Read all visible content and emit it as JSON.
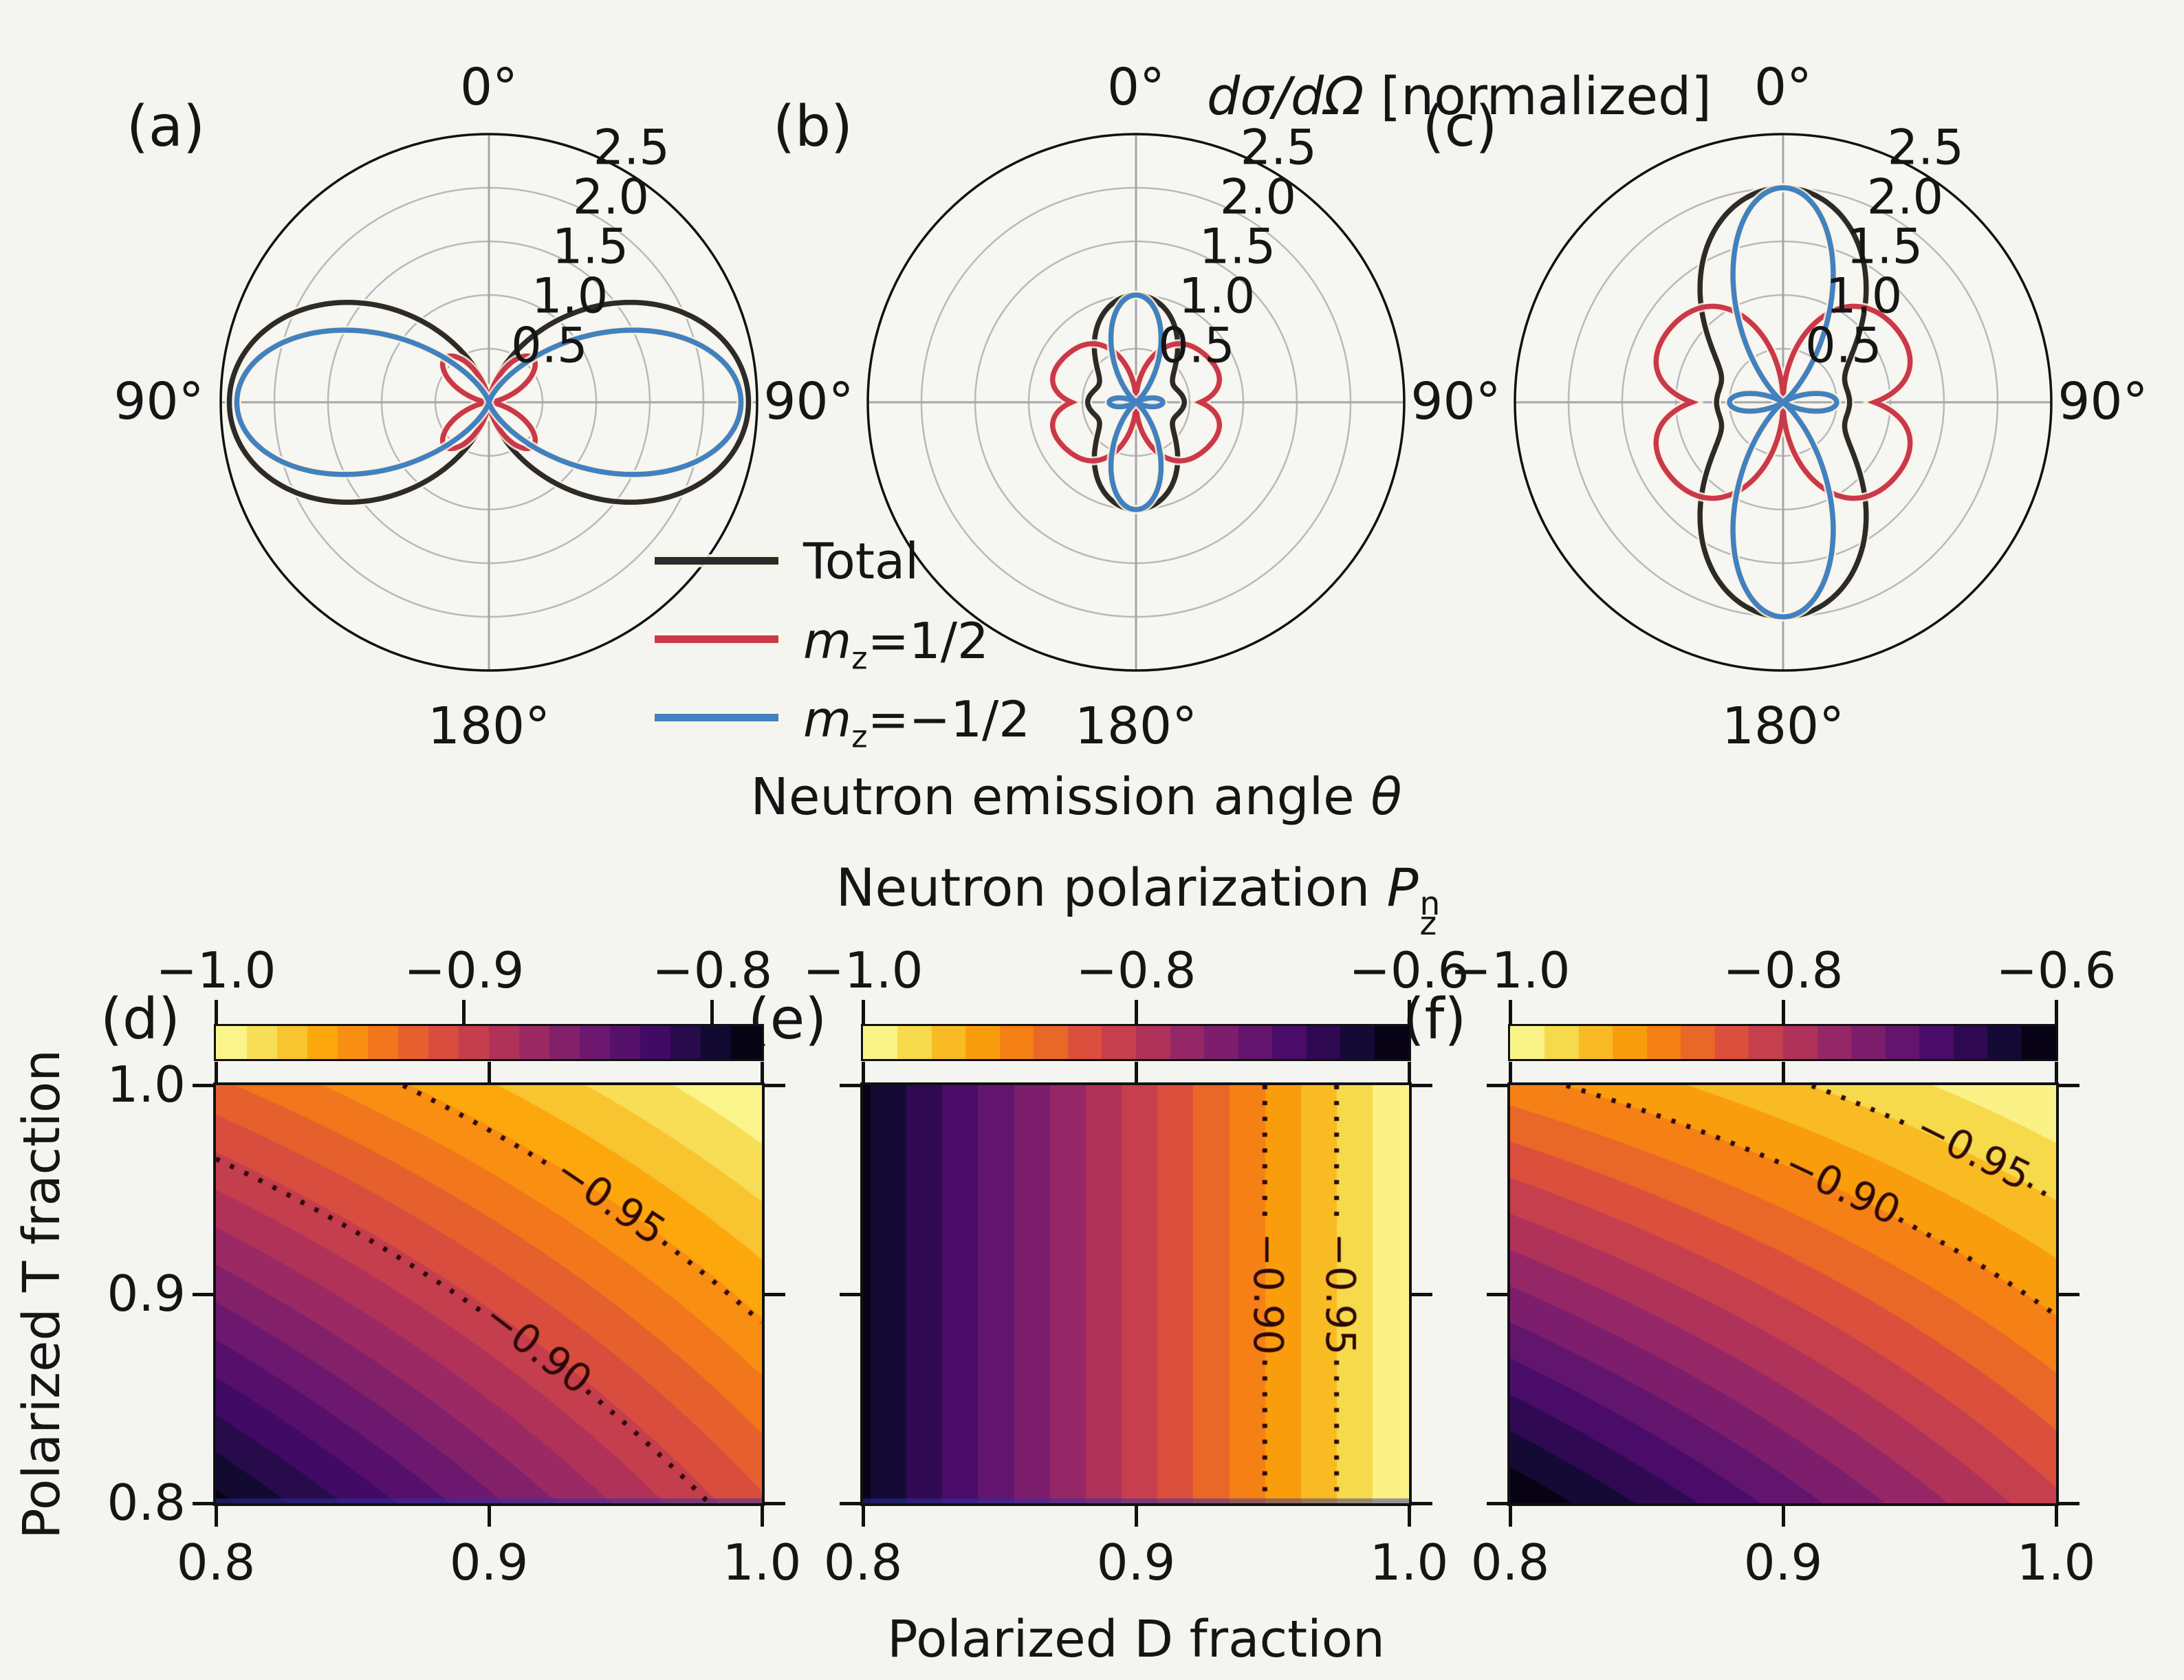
{
  "figure": {
    "background": "#f4f4f1"
  },
  "titles": {
    "polar_title_html": "<i>dσ/dΩ</i> [normalized]",
    "polar_xlabel_html": "Neutron emission angle <i>θ</i>",
    "heat_title_html": "Neutron polarization <i>P</i><span class=\"ss\"><span>n</span><span>z</span></span>",
    "heat_xlabel": "Polarized D fraction",
    "heat_ylabel": "Polarized T fraction"
  },
  "legend": {
    "items": [
      {
        "name": "Total",
        "label_html": "Total",
        "color": "#2b2b2b"
      },
      {
        "name": "mz=1/2",
        "label_html": "<i>m</i><sub>z</sub>=1/2",
        "color": "#c9394b"
      },
      {
        "name": "mz=-1/2",
        "label_html": "<i>m</i><sub>z</sub>=−1/2",
        "color": "#4181c0"
      }
    ]
  },
  "polar_common": {
    "angle_top": "0°",
    "angle_side": "90°",
    "angle_bottom": "180°",
    "r_tick_labels": [
      "0.5",
      "1.0",
      "1.5",
      "2.0",
      "2.5"
    ],
    "r_ticks": [
      0.5,
      1.0,
      1.5,
      2.0,
      2.5
    ],
    "r_max": 2.5,
    "grid_color": "#b9b9b9",
    "spoke_color": "#a6a6a6"
  },
  "chart_data": [
    {
      "id": "a",
      "type": "polar_line",
      "panel_label": "(a)",
      "note": "r(theta) in normalized dsigma/dOmega units; theta=0 at top, symmetric left/right",
      "series": [
        {
          "name": "Total",
          "color": "#2b2b2b",
          "peak_r": 2.42,
          "peak_theta_deg": 90,
          "terms": [
            [
              "sin2",
              2.42
            ]
          ]
        },
        {
          "name": "m_z=1/2",
          "color": "#c9394b",
          "peak_r": 0.58,
          "peak_theta_deg": 45,
          "terms": [
            [
              "sin2dbl",
              0.58
            ]
          ]
        },
        {
          "name": "m_z=-1/2",
          "color": "#4181c0",
          "peak_r": 2.35,
          "peak_theta_deg": 90,
          "terms": [
            [
              "sin4",
              2.35
            ]
          ]
        }
      ]
    },
    {
      "id": "b",
      "type": "polar_line",
      "panel_label": "(b)",
      "series": [
        {
          "name": "Total",
          "color": "#2b2b2b",
          "peak_r": 1.0,
          "peak_theta_deg": 0,
          "terms": [
            [
              "cos2",
              1.0
            ],
            [
              "sin8",
              0.45
            ]
          ]
        },
        {
          "name": "m_z=1/2",
          "color": "#c9394b",
          "peak_r": 0.7,
          "peak_theta_deg": 45,
          "terms": [
            [
              "absin2dbl",
              0.7
            ],
            [
              "sin8",
              0.6
            ]
          ]
        },
        {
          "name": "m_z=-1/2",
          "color": "#4181c0",
          "peak_r": 1.0,
          "peak_theta_deg": 0,
          "terms": [
            [
              "p2sq",
              1.0
            ]
          ]
        }
      ]
    },
    {
      "id": "c",
      "type": "polar_line",
      "panel_label": "(c)",
      "series": [
        {
          "name": "Total",
          "color": "#2b2b2b",
          "peak_r": 2.0,
          "peak_theta_deg": 0,
          "terms": [
            [
              "cos2",
              2.0
            ],
            [
              "sin8",
              0.62
            ]
          ]
        },
        {
          "name": "m_z=1/2",
          "color": "#c9394b",
          "peak_r": 1.15,
          "peak_theta_deg": 45,
          "terms": [
            [
              "absin2dbl",
              1.15
            ],
            [
              "sin8",
              0.85
            ]
          ]
        },
        {
          "name": "m_z=-1/2",
          "color": "#4181c0",
          "peak_r": 2.0,
          "peak_theta_deg": 0,
          "terms": [
            [
              "p2sq",
              2.0
            ]
          ]
        }
      ]
    },
    {
      "id": "d",
      "type": "heatmap",
      "panel_label": "(d)",
      "x_label": "Polarized D fraction",
      "y_label": "Polarized T fraction",
      "x_range": [
        0.8,
        1.0
      ],
      "y_range": [
        0.8,
        1.0
      ],
      "x_tick_labels": [
        "0.8",
        "0.9",
        "1.0"
      ],
      "y_tick_labels": [
        "1.0",
        "0.9",
        "0.8"
      ],
      "value_name": "Neutron polarization P_z^n",
      "formula": "P = -1 + 0.38(1-D) + 0.44(1-T) + 1.20(1-D)(1-T)",
      "coeffs": {
        "a": 0.38,
        "b": 0.44,
        "c": 1.2
      },
      "vmin": -1.0,
      "vmax": -0.78,
      "corner_values": {
        "D1_T1": -1.0,
        "D0.8_T1": -0.92,
        "D1_T0.8": -0.91,
        "D0.8_T0.8": -0.79
      },
      "colorbar_tick_labels": [
        "−1.0",
        "−0.9",
        "−0.8"
      ],
      "colorbar_tick_values": [
        -1.0,
        -0.9,
        -0.8
      ],
      "contours": [
        {
          "level": -0.95,
          "label": "−0.95"
        },
        {
          "level": -0.9,
          "label": "−0.90"
        }
      ],
      "levels": 18
    },
    {
      "id": "e",
      "type": "heatmap",
      "panel_label": "(e)",
      "x_label": "Polarized D fraction",
      "y_label": "Polarized T fraction",
      "x_range": [
        0.8,
        1.0
      ],
      "y_range": [
        0.8,
        1.0
      ],
      "x_tick_labels": [
        "0.8",
        "0.9",
        "1.0"
      ],
      "y_tick_labels": [],
      "value_name": "Neutron polarization P_z^n",
      "formula": "P = -1 + 1.9(1-D)",
      "coeffs": {
        "a": 1.9,
        "b": 0,
        "c": 0
      },
      "vmin": -1.0,
      "vmax": -0.6,
      "corner_values": {
        "D1": -1.0,
        "D0.8": -0.62
      },
      "colorbar_tick_labels": [
        "−1.0",
        "−0.8",
        "−0.6"
      ],
      "colorbar_tick_values": [
        -1.0,
        -0.8,
        -0.6
      ],
      "contours": [
        {
          "level": -0.95,
          "label": "−0.95"
        },
        {
          "level": -0.9,
          "label": "−0.90"
        }
      ],
      "levels": 16
    },
    {
      "id": "f",
      "type": "heatmap",
      "panel_label": "(f)",
      "x_label": "Polarized D fraction",
      "y_label": "Polarized T fraction",
      "x_range": [
        0.8,
        1.0
      ],
      "y_range": [
        0.8,
        1.0
      ],
      "x_tick_labels": [
        "0.8",
        "0.9",
        "1.0"
      ],
      "y_tick_labels": [],
      "value_name": "Neutron polarization P_z^n",
      "formula": "P = -1 + 0.556(1-D) + 0.909(1-T) + 2.67(1-D)(1-T)",
      "coeffs": {
        "a": 0.556,
        "b": 0.909,
        "c": 2.67
      },
      "vmin": -1.0,
      "vmax": -0.6,
      "corner_values": {
        "D1_T1": -1.0,
        "D0.8_T1": -0.89,
        "D1_T0.8": -0.82,
        "D0.8_T0.8": -0.6
      },
      "colorbar_tick_labels": [
        "−1.0",
        "−0.8",
        "−0.6"
      ],
      "colorbar_tick_values": [
        -1.0,
        -0.8,
        -0.6
      ],
      "contours": [
        {
          "level": -0.95,
          "label": "−0.95"
        },
        {
          "level": -0.9,
          "label": "−0.90"
        }
      ],
      "levels": 16
    }
  ],
  "colormap": {
    "name": "inferno_reversed",
    "note": "value -1.0 maps to bright yellow, least-negative value maps to black",
    "stops": [
      [
        0,
        0,
        4
      ],
      [
        22,
        11,
        57
      ],
      [
        66,
        10,
        104
      ],
      [
        106,
        23,
        110
      ],
      [
        147,
        38,
        103
      ],
      [
        188,
        55,
        84
      ],
      [
        221,
        81,
        58
      ],
      [
        243,
        120,
        25
      ],
      [
        252,
        165,
        10
      ],
      [
        246,
        215,
        70
      ],
      [
        252,
        255,
        164
      ]
    ]
  },
  "contour_style": {
    "color": "#2c0806",
    "dotted": true
  }
}
